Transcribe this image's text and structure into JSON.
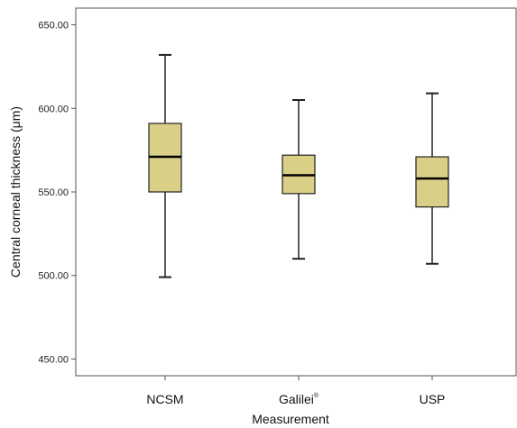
{
  "chart_data": {
    "type": "box",
    "title": "",
    "xlabel": "Measurement",
    "ylabel": "Central corneal thickness (μm)",
    "ylim": [
      440,
      660
    ],
    "yticks": [
      "450.00",
      "500.00",
      "550.00",
      "600.00",
      "650.00"
    ],
    "categories": [
      "NCSM",
      "Galilei",
      "USP"
    ],
    "category_superscripts": [
      "",
      "®",
      ""
    ],
    "boxes": [
      {
        "category": "NCSM",
        "min": 499,
        "q1": 550,
        "median": 571,
        "q3": 591,
        "max": 632
      },
      {
        "category": "Galilei",
        "min": 510,
        "q1": 549,
        "median": 560,
        "q3": 572,
        "max": 605
      },
      {
        "category": "USP",
        "min": 507,
        "q1": 541,
        "median": 558,
        "q3": 571,
        "max": 609
      }
    ],
    "grid": false,
    "legend": "none",
    "colors": {
      "box_fill": "#d9cf86",
      "stroke": "#222222",
      "frame": "#555555"
    }
  }
}
